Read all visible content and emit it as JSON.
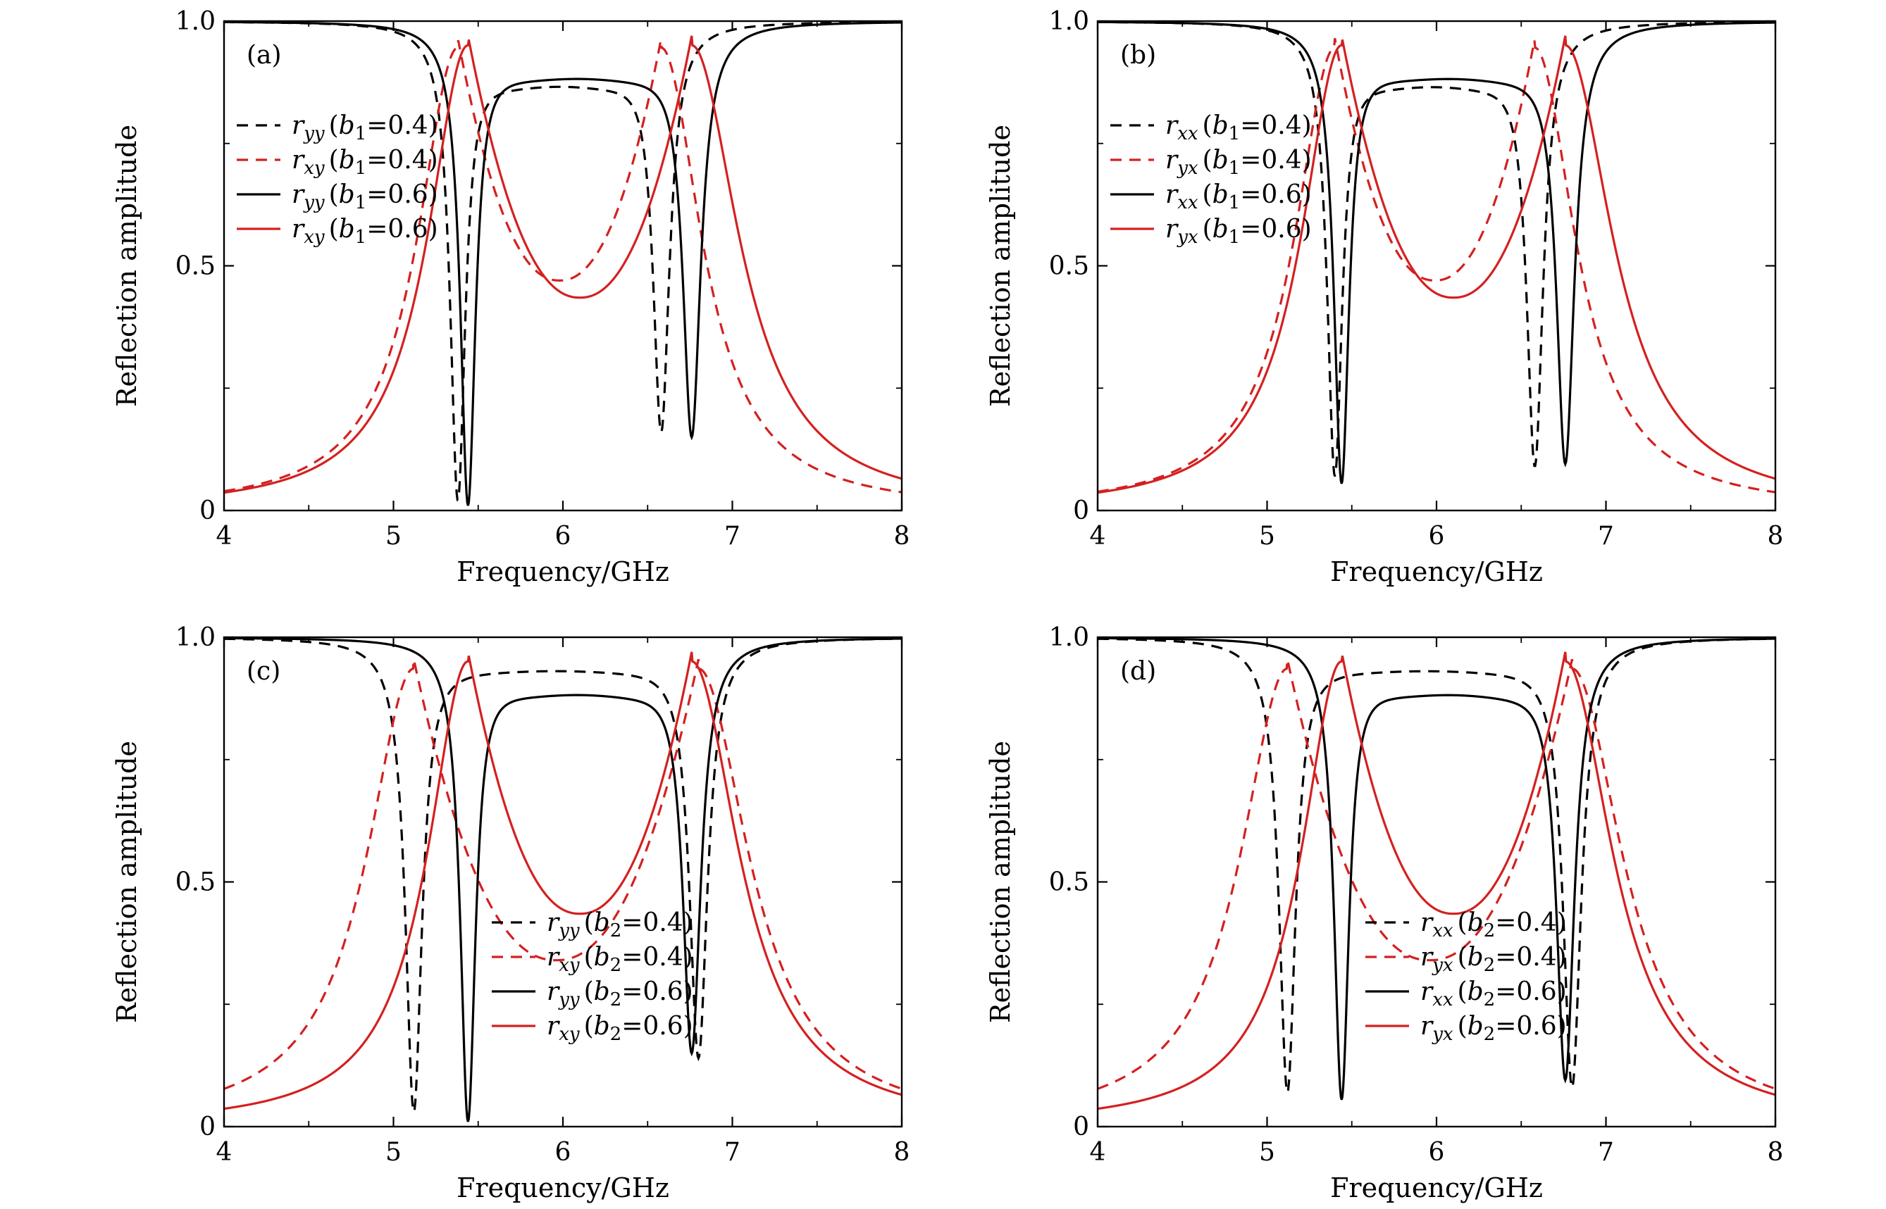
{
  "figure": {
    "panel_ids": [
      "a",
      "b",
      "c",
      "d"
    ]
  },
  "chart_data": [
    {
      "type": "line",
      "panel_label": "(a)",
      "xlabel": "Frequency/GHz",
      "ylabel": "Reflection amplitude",
      "xlim": [
        4,
        8
      ],
      "ylim": [
        0,
        1
      ],
      "xticks": [
        "4",
        "5",
        "6",
        "7",
        "8"
      ],
      "yticks": [
        "0",
        "0.5",
        "1.0"
      ],
      "grid": false,
      "legend_position": "upper-left",
      "series": [
        {
          "name": "r_yy (b1=0.4)",
          "label": {
            "sym": "r",
            "sub": "yy",
            "pre": "(",
            "param": "b",
            "psub": "1",
            "val": "=0.4)"
          },
          "color": "#000000",
          "dash": true,
          "kind": "dip",
          "params": {
            "f1": 5.38,
            "f2": 6.58,
            "w1": 0.055,
            "w2": 0.06,
            "bump": 0.88,
            "depth1": 0.02,
            "depth2": 0.16
          }
        },
        {
          "name": "r_xy (b1=0.4)",
          "label": {
            "sym": "r",
            "sub": "xy",
            "pre": "(",
            "param": "b",
            "psub": "1",
            "val": "=0.4)"
          },
          "color": "#d42020",
          "dash": true,
          "kind": "peak",
          "params": {
            "f1": 5.38,
            "f2": 6.58,
            "w1": 0.12,
            "w2": 0.12,
            "peak": 0.965,
            "trough": 0.47,
            "tail": 0.06
          }
        },
        {
          "name": "r_yy (b1=0.6)",
          "label": {
            "sym": "r",
            "sub": "yy",
            "pre": "(",
            "param": "b",
            "psub": "1",
            "val": "=0.6)"
          },
          "color": "#000000",
          "dash": false,
          "kind": "dip",
          "params": {
            "f1": 5.44,
            "f2": 6.76,
            "w1": 0.055,
            "w2": 0.065,
            "bump": 0.895,
            "depth1": 0.01,
            "depth2": 0.15
          }
        },
        {
          "name": "r_xy (b1=0.6)",
          "label": {
            "sym": "r",
            "sub": "xy",
            "pre": "(",
            "param": "b",
            "psub": "1",
            "val": "=0.6)"
          },
          "color": "#d42020",
          "dash": false,
          "kind": "peak",
          "params": {
            "f1": 5.44,
            "f2": 6.76,
            "w1": 0.12,
            "w2": 0.14,
            "peak": 0.97,
            "trough": 0.435,
            "tail": 0.075
          }
        }
      ]
    },
    {
      "type": "line",
      "panel_label": "(b)",
      "xlabel": "Frequency/GHz",
      "ylabel": "Reflection amplitude",
      "xlim": [
        4,
        8
      ],
      "ylim": [
        0,
        1
      ],
      "xticks": [
        "4",
        "5",
        "6",
        "7",
        "8"
      ],
      "yticks": [
        "0",
        "0.5",
        "1.0"
      ],
      "grid": false,
      "legend_position": "upper-left",
      "series": [
        {
          "name": "r_xx (b1=0.4)",
          "label": {
            "sym": "r",
            "sub": "xx",
            "pre": "(",
            "param": "b",
            "psub": "1",
            "val": "=0.4)"
          },
          "color": "#000000",
          "dash": true,
          "kind": "dip",
          "params": {
            "f1": 5.4,
            "f2": 6.58,
            "w1": 0.055,
            "w2": 0.06,
            "bump": 0.88,
            "depth1": 0.07,
            "depth2": 0.09
          }
        },
        {
          "name": "r_yx (b1=0.4)",
          "label": {
            "sym": "r",
            "sub": "yx",
            "pre": "(",
            "param": "b",
            "psub": "1",
            "val": "=0.4)"
          },
          "color": "#d42020",
          "dash": true,
          "kind": "peak",
          "params": {
            "f1": 5.4,
            "f2": 6.58,
            "w1": 0.12,
            "w2": 0.12,
            "peak": 0.965,
            "trough": 0.47,
            "tail": 0.06
          }
        },
        {
          "name": "r_xx (b1=0.6)",
          "label": {
            "sym": "r",
            "sub": "xx",
            "pre": "(",
            "param": "b",
            "psub": "1",
            "val": "=0.6)"
          },
          "color": "#000000",
          "dash": false,
          "kind": "dip",
          "params": {
            "f1": 5.44,
            "f2": 6.76,
            "w1": 0.055,
            "w2": 0.065,
            "bump": 0.895,
            "depth1": 0.055,
            "depth2": 0.095
          }
        },
        {
          "name": "r_yx (b1=0.6)",
          "label": {
            "sym": "r",
            "sub": "yx",
            "pre": "(",
            "param": "b",
            "psub": "1",
            "val": "=0.6)"
          },
          "color": "#d42020",
          "dash": false,
          "kind": "peak",
          "params": {
            "f1": 5.44,
            "f2": 6.76,
            "w1": 0.12,
            "w2": 0.14,
            "peak": 0.97,
            "trough": 0.435,
            "tail": 0.075
          }
        }
      ]
    },
    {
      "type": "line",
      "panel_label": "(c)",
      "xlabel": "Frequency/GHz",
      "ylabel": "Reflection amplitude",
      "xlim": [
        4,
        8
      ],
      "ylim": [
        0,
        1
      ],
      "xticks": [
        "4",
        "5",
        "6",
        "7",
        "8"
      ],
      "yticks": [
        "0",
        "0.5",
        "1.0"
      ],
      "grid": false,
      "legend_position": "lower-center",
      "series": [
        {
          "name": "r_yy (b2=0.4)",
          "label": {
            "sym": "r",
            "sub": "yy",
            "pre": "(",
            "param": "b",
            "psub": "2",
            "val": "=0.4)"
          },
          "color": "#000000",
          "dash": true,
          "kind": "dip",
          "params": {
            "f1": 5.12,
            "f2": 6.8,
            "w1": 0.06,
            "w2": 0.065,
            "bump": 0.94,
            "depth1": 0.03,
            "depth2": 0.14
          }
        },
        {
          "name": "r_xy (b2=0.4)",
          "label": {
            "sym": "r",
            "sub": "xy",
            "pre": "(",
            "param": "b",
            "psub": "2",
            "val": "=0.4)"
          },
          "color": "#d42020",
          "dash": true,
          "kind": "peak",
          "params": {
            "f1": 5.12,
            "f2": 6.8,
            "w1": 0.14,
            "w2": 0.15,
            "peak": 0.955,
            "trough": 0.34,
            "tail": 0.095
          }
        },
        {
          "name": "r_yy (b2=0.6)",
          "label": {
            "sym": "r",
            "sub": "yy",
            "pre": "(",
            "param": "b",
            "psub": "2",
            "val": "=0.6)"
          },
          "color": "#000000",
          "dash": false,
          "kind": "dip",
          "params": {
            "f1": 5.44,
            "f2": 6.76,
            "w1": 0.055,
            "w2": 0.065,
            "bump": 0.895,
            "depth1": 0.01,
            "depth2": 0.15
          }
        },
        {
          "name": "r_xy (b2=0.6)",
          "label": {
            "sym": "r",
            "sub": "xy",
            "pre": "(",
            "param": "b",
            "psub": "2",
            "val": "=0.6)"
          },
          "color": "#d42020",
          "dash": false,
          "kind": "peak",
          "params": {
            "f1": 5.44,
            "f2": 6.76,
            "w1": 0.12,
            "w2": 0.14,
            "peak": 0.97,
            "trough": 0.435,
            "tail": 0.075
          }
        }
      ]
    },
    {
      "type": "line",
      "panel_label": "(d)",
      "xlabel": "Frequency/GHz",
      "ylabel": "Reflection amplitude",
      "xlim": [
        4,
        8
      ],
      "ylim": [
        0,
        1
      ],
      "xticks": [
        "4",
        "5",
        "6",
        "7",
        "8"
      ],
      "yticks": [
        "0",
        "0.5",
        "1.0"
      ],
      "grid": false,
      "legend_position": "lower-center",
      "series": [
        {
          "name": "r_xx (b2=0.4)",
          "label": {
            "sym": "r",
            "sub": "xx",
            "pre": "(",
            "param": "b",
            "psub": "2",
            "val": "=0.4)"
          },
          "color": "#000000",
          "dash": true,
          "kind": "dip",
          "params": {
            "f1": 5.12,
            "f2": 6.8,
            "w1": 0.06,
            "w2": 0.065,
            "bump": 0.94,
            "depth1": 0.07,
            "depth2": 0.08
          }
        },
        {
          "name": "r_yx (b2=0.4)",
          "label": {
            "sym": "r",
            "sub": "yx",
            "pre": "(",
            "param": "b",
            "psub": "2",
            "val": "=0.4)"
          },
          "color": "#d42020",
          "dash": true,
          "kind": "peak",
          "params": {
            "f1": 5.12,
            "f2": 6.8,
            "w1": 0.14,
            "w2": 0.15,
            "peak": 0.955,
            "trough": 0.34,
            "tail": 0.095
          }
        },
        {
          "name": "r_xx (b2=0.6)",
          "label": {
            "sym": "r",
            "sub": "xx",
            "pre": "(",
            "param": "b",
            "psub": "2",
            "val": "=0.6)"
          },
          "color": "#000000",
          "dash": false,
          "kind": "dip",
          "params": {
            "f1": 5.44,
            "f2": 6.76,
            "w1": 0.055,
            "w2": 0.065,
            "bump": 0.895,
            "depth1": 0.055,
            "depth2": 0.095
          }
        },
        {
          "name": "r_yx (b2=0.6)",
          "label": {
            "sym": "r",
            "sub": "yx",
            "pre": "(",
            "param": "b",
            "psub": "2",
            "val": "=0.6)"
          },
          "color": "#d42020",
          "dash": false,
          "kind": "peak",
          "params": {
            "f1": 5.44,
            "f2": 6.76,
            "w1": 0.12,
            "w2": 0.14,
            "peak": 0.97,
            "trough": 0.435,
            "tail": 0.075
          }
        }
      ]
    }
  ]
}
